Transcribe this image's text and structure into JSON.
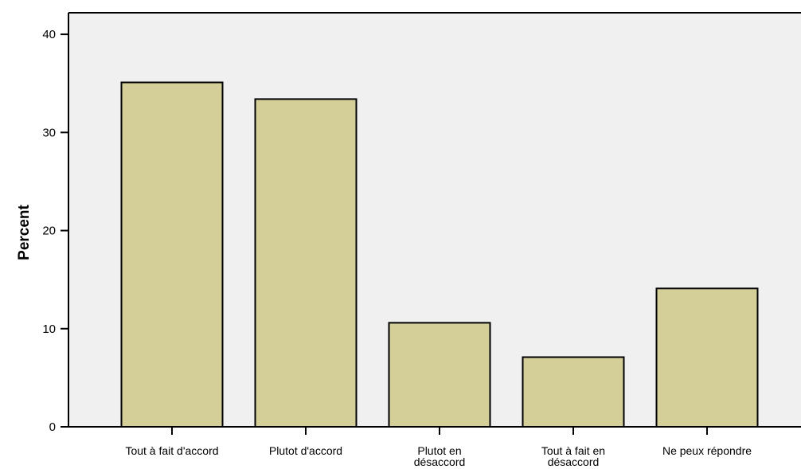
{
  "colors": {
    "plot_background": "#f0f0f0",
    "bar_fill": "#d4ce98",
    "bar_stroke": "#000000",
    "axis": "#000000"
  },
  "chart_data": {
    "type": "bar",
    "categories": [
      [
        "Tout à fait d'accord"
      ],
      [
        "Plutot d'accord"
      ],
      [
        "Plutot en",
        "désaccord"
      ],
      [
        "Tout à fait  en",
        "désaccord"
      ],
      [
        "Ne peux répondre"
      ]
    ],
    "values": [
      35.1,
      33.4,
      10.6,
      7.1,
      14.1
    ],
    "ylabel": "Percent",
    "xlabel": "",
    "ylim": [
      0,
      42.2
    ],
    "yticks": [
      0,
      10,
      20,
      30,
      40
    ],
    "grid": false,
    "legend": "none"
  }
}
